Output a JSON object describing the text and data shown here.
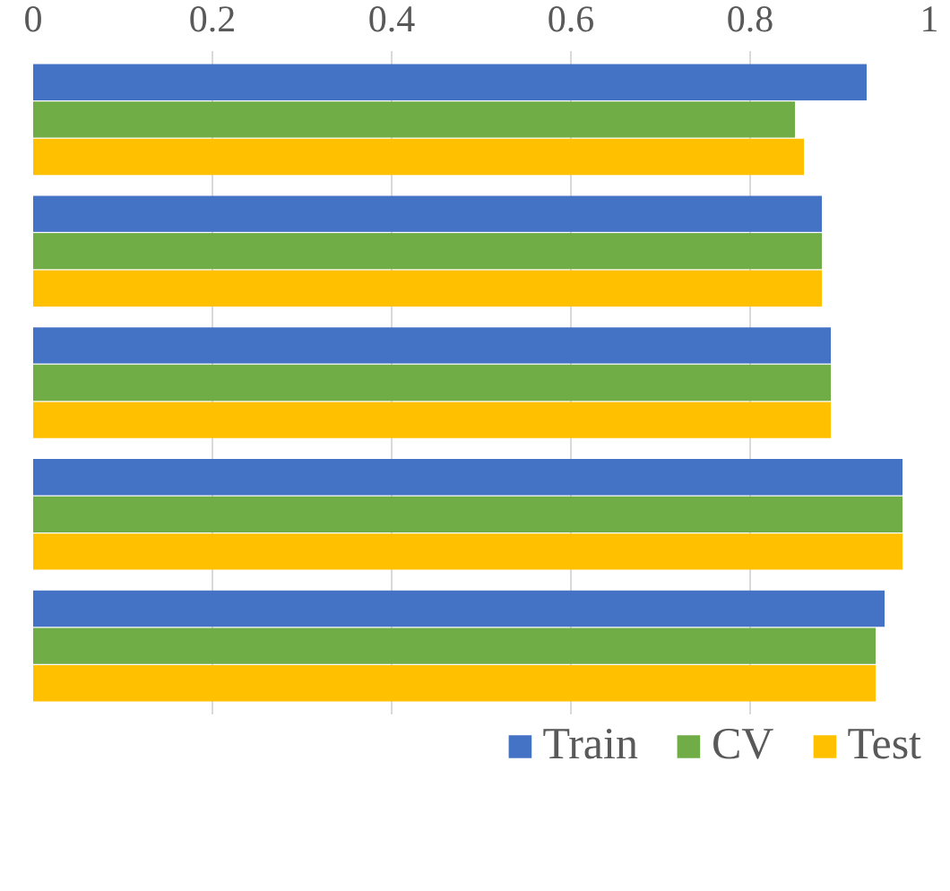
{
  "chart_data": {
    "type": "bar",
    "orientation": "horizontal",
    "categories": [
      null,
      null,
      null,
      null,
      null
    ],
    "series": [
      {
        "name": "Train",
        "color": "#4472c4",
        "values": [
          0.93,
          0.88,
          0.89,
          0.97,
          0.95
        ]
      },
      {
        "name": "CV",
        "color": "#70ad47",
        "values": [
          0.85,
          0.88,
          0.89,
          0.97,
          0.94
        ]
      },
      {
        "name": "Test",
        "color": "#ffc000",
        "values": [
          0.86,
          0.88,
          0.89,
          0.97,
          0.94
        ]
      }
    ],
    "xlim": [
      0,
      1
    ],
    "xticks": [
      0,
      0.2,
      0.4,
      0.6,
      0.8,
      1
    ],
    "grid": "x",
    "legend": "bottom"
  }
}
